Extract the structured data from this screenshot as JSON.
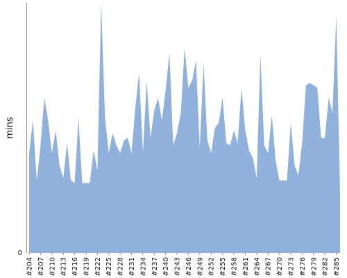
{
  "chart_data": {
    "type": "area",
    "ylabel": "mins",
    "ylim": [
      0,
      100
    ],
    "y_ticks": [
      {
        "value": 0,
        "label": "0"
      }
    ],
    "grid": false,
    "legend": "none",
    "color": "#8fb1dc",
    "x_tick_labels": [
      "#204",
      "#207",
      "#210",
      "#213",
      "#216",
      "#219",
      "#222",
      "#225",
      "#228",
      "#231",
      "#234",
      "#237",
      "#240",
      "#243",
      "#246",
      "#249",
      "#252",
      "#255",
      "#258",
      "#261",
      "#264",
      "#267",
      "#270",
      "#273",
      "#276",
      "#279",
      "#282",
      "#285"
    ],
    "series": [
      {
        "x": [
          "#204",
          "#205",
          "#206",
          "#207",
          "#208",
          "#209",
          "#210",
          "#211",
          "#212",
          "#213",
          "#214",
          "#215",
          "#216",
          "#217",
          "#218",
          "#219",
          "#220",
          "#221",
          "#222",
          "#223",
          "#224",
          "#225",
          "#226",
          "#227",
          "#228",
          "#229",
          "#230",
          "#231",
          "#232",
          "#233",
          "#234",
          "#235",
          "#236",
          "#237",
          "#238",
          "#239",
          "#240",
          "#241",
          "#242",
          "#243",
          "#244",
          "#245",
          "#246",
          "#247",
          "#248",
          "#249",
          "#250",
          "#251",
          "#252",
          "#253",
          "#254",
          "#255",
          "#256",
          "#257",
          "#258",
          "#259",
          "#260",
          "#261",
          "#262",
          "#263",
          "#264",
          "#265",
          "#266",
          "#267",
          "#268",
          "#269",
          "#270",
          "#271",
          "#272",
          "#273",
          "#274",
          "#275",
          "#276",
          "#277",
          "#278",
          "#279",
          "#280",
          "#281",
          "#282",
          "#283",
          "#284",
          "#285",
          "#286"
        ],
        "values": [
          40,
          53,
          29,
          43,
          62,
          53,
          40,
          49,
          35,
          30,
          44,
          29,
          28,
          54,
          28,
          28,
          28,
          41,
          33,
          100,
          54,
          40,
          48,
          43,
          40,
          45,
          46,
          40,
          58,
          72,
          40,
          69,
          46,
          57,
          62,
          53,
          65,
          80,
          43,
          48,
          56,
          82,
          66,
          69,
          77,
          42,
          76,
          45,
          40,
          50,
          52,
          62,
          44,
          43,
          49,
          44,
          66,
          49,
          41,
          38,
          30,
          79,
          43,
          40,
          55,
          37,
          29,
          29,
          29,
          52,
          35,
          31,
          44,
          67,
          68,
          67,
          66,
          46,
          46,
          62,
          56,
          95,
          24
        ]
      }
    ]
  }
}
